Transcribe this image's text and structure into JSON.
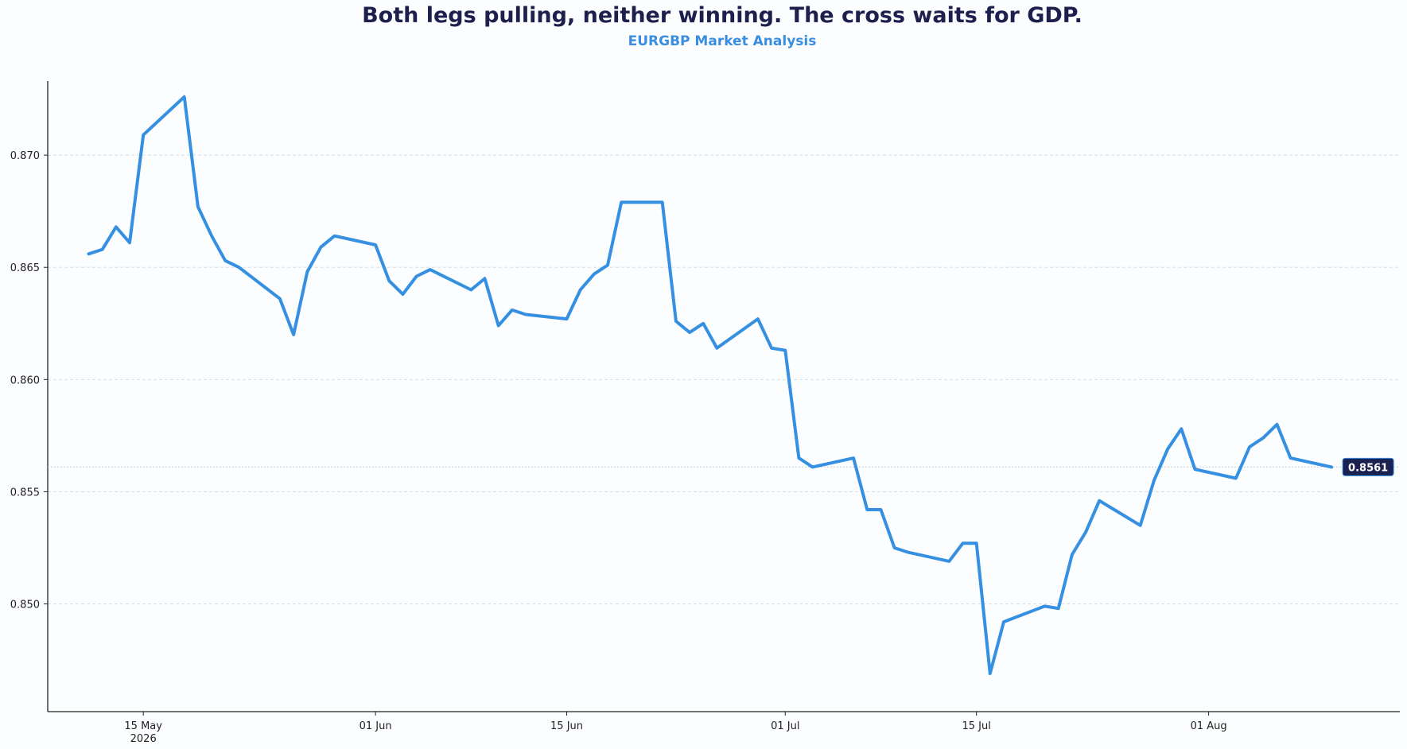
{
  "chart_data": {
    "type": "line",
    "title": "Both legs pulling, neither winning. The cross waits for GDP.",
    "subtitle": "EURGBP Market Analysis",
    "xlabel": "",
    "ylabel": "",
    "ylim": [
      0.8452,
      0.8733
    ],
    "xlim": [
      "2026-05-08",
      "2026-08-15"
    ],
    "grid": "horizontal dashed",
    "legend": "none",
    "x_ticks": [
      {
        "date": "2026-05-15",
        "label": "15 May",
        "sublabel": "2026"
      },
      {
        "date": "2026-06-01",
        "label": "01 Jun",
        "sublabel": ""
      },
      {
        "date": "2026-06-15",
        "label": "15 Jun",
        "sublabel": ""
      },
      {
        "date": "2026-07-01",
        "label": "01 Jul",
        "sublabel": ""
      },
      {
        "date": "2026-07-15",
        "label": "15 Jul",
        "sublabel": ""
      },
      {
        "date": "2026-08-01",
        "label": "01 Aug",
        "sublabel": ""
      }
    ],
    "y_ticks": [
      {
        "value": 0.85,
        "label": "0.850"
      },
      {
        "value": 0.855,
        "label": "0.855"
      },
      {
        "value": 0.86,
        "label": "0.860"
      },
      {
        "value": 0.865,
        "label": "0.865"
      },
      {
        "value": 0.87,
        "label": "0.870"
      }
    ],
    "last_value": {
      "value": 0.8561,
      "label": "0.8561"
    },
    "colors": {
      "line": "#3590e2",
      "label_bg": "#1b2150",
      "grid": "#d9dde3",
      "axis": "#222222"
    },
    "series": [
      {
        "points": [
          [
            "2026-05-11",
            0.8656
          ],
          [
            "2026-05-12",
            0.8658
          ],
          [
            "2026-05-13",
            0.8668
          ],
          [
            "2026-05-14",
            0.8661
          ],
          [
            "2026-05-15",
            0.8709
          ],
          [
            "2026-05-18",
            0.8726
          ],
          [
            "2026-05-19",
            0.8677
          ],
          [
            "2026-05-20",
            0.8664
          ],
          [
            "2026-05-21",
            0.8653
          ],
          [
            "2026-05-22",
            0.865
          ],
          [
            "2026-05-25",
            0.8636
          ],
          [
            "2026-05-26",
            0.862
          ],
          [
            "2026-05-27",
            0.8648
          ],
          [
            "2026-05-28",
            0.8659
          ],
          [
            "2026-05-29",
            0.8664
          ],
          [
            "2026-06-01",
            0.866
          ],
          [
            "2026-06-02",
            0.8644
          ],
          [
            "2026-06-03",
            0.8638
          ],
          [
            "2026-06-04",
            0.8646
          ],
          [
            "2026-06-05",
            0.8649
          ],
          [
            "2026-06-08",
            0.864
          ],
          [
            "2026-06-09",
            0.8645
          ],
          [
            "2026-06-10",
            0.8624
          ],
          [
            "2026-06-11",
            0.8631
          ],
          [
            "2026-06-12",
            0.8629
          ],
          [
            "2026-06-15",
            0.8627
          ],
          [
            "2026-06-16",
            0.864
          ],
          [
            "2026-06-17",
            0.8647
          ],
          [
            "2026-06-18",
            0.8651
          ],
          [
            "2026-06-19",
            0.8679
          ],
          [
            "2026-06-22",
            0.8679
          ],
          [
            "2026-06-23",
            0.8626
          ],
          [
            "2026-06-24",
            0.8621
          ],
          [
            "2026-06-25",
            0.8625
          ],
          [
            "2026-06-26",
            0.8614
          ],
          [
            "2026-06-29",
            0.8627
          ],
          [
            "2026-06-30",
            0.8614
          ],
          [
            "2026-07-01",
            0.8613
          ],
          [
            "2026-07-02",
            0.8565
          ],
          [
            "2026-07-03",
            0.8561
          ],
          [
            "2026-07-06",
            0.8565
          ],
          [
            "2026-07-07",
            0.8542
          ],
          [
            "2026-07-08",
            0.8542
          ],
          [
            "2026-07-09",
            0.8525
          ],
          [
            "2026-07-10",
            0.8523
          ],
          [
            "2026-07-13",
            0.8519
          ],
          [
            "2026-07-14",
            0.8527
          ],
          [
            "2026-07-15",
            0.8527
          ],
          [
            "2026-07-16",
            0.8469
          ],
          [
            "2026-07-17",
            0.8492
          ],
          [
            "2026-07-20",
            0.8499
          ],
          [
            "2026-07-21",
            0.8498
          ],
          [
            "2026-07-22",
            0.8522
          ],
          [
            "2026-07-23",
            0.8532
          ],
          [
            "2026-07-24",
            0.8546
          ],
          [
            "2026-07-27",
            0.8535
          ],
          [
            "2026-07-28",
            0.8555
          ],
          [
            "2026-07-29",
            0.8569
          ],
          [
            "2026-07-30",
            0.8578
          ],
          [
            "2026-07-31",
            0.856
          ],
          [
            "2026-08-03",
            0.8556
          ],
          [
            "2026-08-04",
            0.857
          ],
          [
            "2026-08-05",
            0.8574
          ],
          [
            "2026-08-06",
            0.858
          ],
          [
            "2026-08-07",
            0.8565
          ],
          [
            "2026-08-10",
            0.8561
          ]
        ]
      }
    ]
  }
}
